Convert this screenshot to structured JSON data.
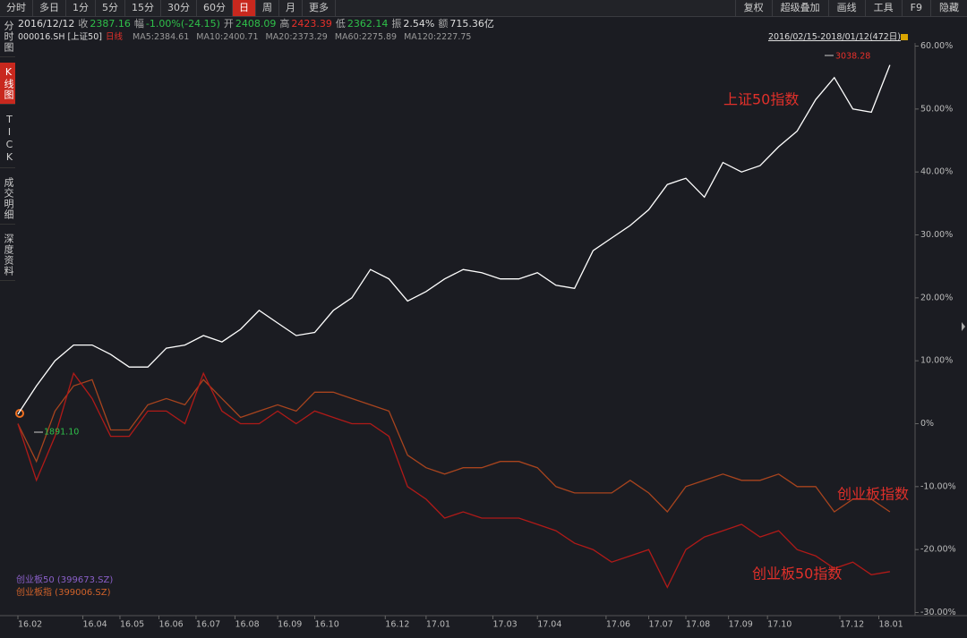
{
  "toolbar": {
    "left": [
      {
        "label": "分时"
      },
      {
        "label": "多日"
      },
      {
        "label": "1分"
      },
      {
        "label": "5分"
      },
      {
        "label": "15分"
      },
      {
        "label": "30分"
      },
      {
        "label": "60分"
      },
      {
        "label": "日",
        "active": true
      },
      {
        "label": "周"
      },
      {
        "label": "月"
      },
      {
        "label": "更多"
      }
    ],
    "right": [
      {
        "label": "复权"
      },
      {
        "label": "超级叠加"
      },
      {
        "label": "画线"
      },
      {
        "label": "工具"
      },
      {
        "label": "F9"
      },
      {
        "label": "隐藏"
      }
    ]
  },
  "tabs": [
    {
      "label": "分时图"
    },
    {
      "label": "K线图",
      "active": true
    },
    {
      "label": "TICK"
    },
    {
      "label": "成交明细"
    },
    {
      "label": "深度资料"
    }
  ],
  "quote": {
    "date": "2016/12/12",
    "fields": [
      {
        "label": "收",
        "value": "2387.16",
        "color": "#2fc04a"
      },
      {
        "label": "幅",
        "value": "-1.00%(-24.15)",
        "color": "#2fc04a"
      },
      {
        "label": "开",
        "value": "2408.09",
        "color": "#2fc04a"
      },
      {
        "label": "高",
        "value": "2423.39",
        "color": "#e8302a"
      },
      {
        "label": "低",
        "value": "2362.14",
        "color": "#2fc04a"
      },
      {
        "label": "振",
        "value": "2.54%",
        "color": "#dddddd"
      },
      {
        "label": "额",
        "value": "715.36亿",
        "color": "#dddddd"
      }
    ]
  },
  "symbol": {
    "code": "000016.SH [上证50]",
    "period": "日线",
    "ma": [
      "MA5:2384.61",
      "MA10:2400.71",
      "MA20:2373.29",
      "MA60:2275.89",
      "MA120:2227.75"
    ],
    "range": "2016/02/15-2018/01/12(472日)"
  },
  "chart_data": {
    "type": "line",
    "x": [
      0,
      10,
      20,
      30,
      40,
      50,
      60,
      70,
      80,
      90,
      100,
      110,
      120,
      130,
      140,
      150,
      160,
      170,
      180,
      190,
      200,
      210,
      220,
      230,
      240,
      250,
      260,
      270,
      280,
      290,
      300,
      310,
      320,
      330,
      340,
      350,
      360,
      370,
      380,
      390,
      400,
      410,
      420,
      430,
      440,
      450,
      460,
      470
    ],
    "xlim": [
      0,
      471
    ],
    "xticks": [
      {
        "value": 0,
        "label": "16.02"
      },
      {
        "value": 35,
        "label": "16.04"
      },
      {
        "value": 55,
        "label": "16.05"
      },
      {
        "value": 76,
        "label": "16.06"
      },
      {
        "value": 96,
        "label": "16.07"
      },
      {
        "value": 117,
        "label": "16.08"
      },
      {
        "value": 140,
        "label": "16.09"
      },
      {
        "value": 160,
        "label": "16.10"
      },
      {
        "value": 198,
        "label": "16.12"
      },
      {
        "value": 220,
        "label": "17.01"
      },
      {
        "value": 256,
        "label": "17.03"
      },
      {
        "value": 280,
        "label": "17.04"
      },
      {
        "value": 317,
        "label": "17.06"
      },
      {
        "value": 340,
        "label": "17.07"
      },
      {
        "value": 360,
        "label": "17.08"
      },
      {
        "value": 383,
        "label": "17.09"
      },
      {
        "value": 404,
        "label": "17.10"
      },
      {
        "value": 443,
        "label": "17.12"
      },
      {
        "value": 464,
        "label": "18.01"
      }
    ],
    "ylim": [
      -30.5,
      60.5
    ],
    "yticks": [
      {
        "value": 60,
        "label": "60.00%"
      },
      {
        "value": 50,
        "label": "50.00%"
      },
      {
        "value": 40,
        "label": "40.00%"
      },
      {
        "value": 30,
        "label": "30.00%"
      },
      {
        "value": 20,
        "label": "20.00%"
      },
      {
        "value": 10,
        "label": "10.00%"
      },
      {
        "value": 0,
        "label": "0%"
      },
      {
        "value": -10,
        "label": "-10.00%"
      },
      {
        "value": -20,
        "label": "-20.00%"
      },
      {
        "value": -30,
        "label": "-30.00%"
      }
    ],
    "grid": false,
    "series": [
      {
        "color": "#ffffff",
        "values": [
          1.5,
          6,
          10,
          12.5,
          12.5,
          11,
          9,
          9,
          12,
          12.5,
          14,
          13,
          15,
          18,
          16,
          14,
          14.5,
          18,
          20,
          24.5,
          23,
          19.5,
          21,
          23,
          24.5,
          24,
          23,
          23,
          24,
          22,
          21.5,
          27.5,
          29.5,
          31.5,
          34,
          38,
          39,
          36,
          41.5,
          40,
          41,
          44,
          46.5,
          51.5,
          55,
          50,
          49.5,
          57
        ]
      },
      {
        "name": "创业板50 (399673.SZ)",
        "color": "#b01a18",
        "legend_color": "#8a5fc8",
        "values": [
          0,
          -9,
          -2,
          8,
          4,
          -2,
          -2,
          2,
          2,
          0,
          8,
          2,
          0,
          0,
          2,
          0,
          2,
          1,
          0,
          0,
          -2,
          -10,
          -12,
          -15,
          -14,
          -15,
          -15,
          -15,
          -16,
          -17,
          -19,
          -20,
          -22,
          -21,
          -20,
          -26,
          -20,
          -18,
          -17,
          -16,
          -18,
          -17,
          -20,
          -21,
          -23,
          -22,
          -24,
          -23.5
        ]
      },
      {
        "name": "创业板指 (399006.SZ)",
        "color": "#a8441e",
        "legend_color": "#d0622a",
        "values": [
          0,
          -6,
          2,
          6,
          7,
          -1,
          -1,
          3,
          4,
          3,
          7,
          4,
          1,
          2,
          3,
          2,
          5,
          5,
          4,
          3,
          2,
          -5,
          -7,
          -8,
          -7,
          -7,
          -6,
          -6,
          -7,
          -10,
          -11,
          -11,
          -11,
          -9,
          -11,
          -14,
          -10,
          -9,
          -8,
          -9,
          -9,
          -8,
          -10,
          -10,
          -14,
          -12,
          -12,
          -14
        ]
      }
    ],
    "annotations": [
      {
        "text": "上证50指数",
        "color": "#e0302a"
      },
      {
        "text": "创业板指数",
        "color": "#e0302a"
      },
      {
        "text": "创业板50指数",
        "color": "#e0302a"
      },
      {
        "text": "3038.28",
        "color": "#e8302a"
      },
      {
        "text": "1891.10",
        "color": "#2fc04a"
      }
    ]
  }
}
